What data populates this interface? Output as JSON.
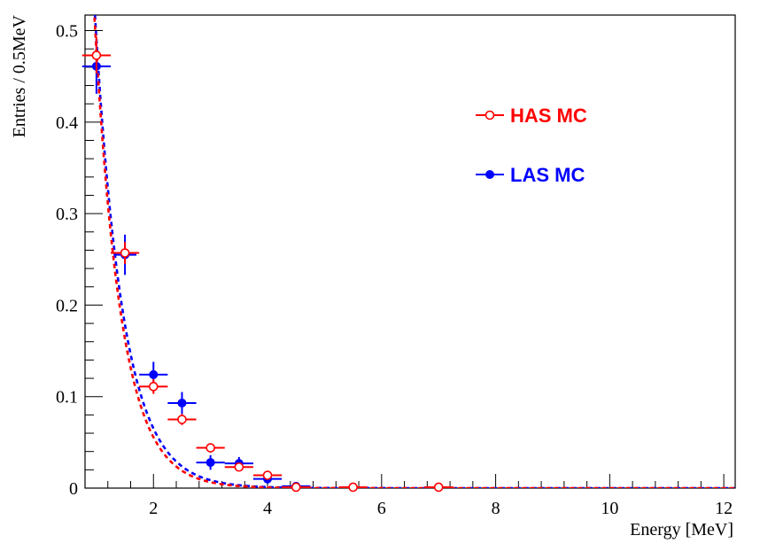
{
  "chart_data": {
    "type": "scatter",
    "xlabel": "Energy [MeV]",
    "ylabel": "Entries / 0.5MeV",
    "xlim": [
      0.8,
      12.2
    ],
    "ylim": [
      0,
      0.517
    ],
    "x_ticks": [
      2,
      4,
      6,
      8,
      10,
      12
    ],
    "x_tick_labels": [
      "2",
      "4",
      "6",
      "8",
      "10",
      "12"
    ],
    "y_ticks": [
      0,
      0.1,
      0.2,
      0.3,
      0.4,
      0.5
    ],
    "y_tick_labels": [
      "0",
      "0.1",
      "0.2",
      "0.3",
      "0.4",
      "0.5"
    ],
    "grid": false,
    "legend_position": "top-right",
    "series": [
      {
        "name": "HAS MC",
        "color": "#ff0000",
        "marker": "open-circle",
        "points": [
          {
            "x": 1.0,
            "y": 0.473,
            "xerr": 0.25,
            "yerr": 0.02
          },
          {
            "x": 1.5,
            "y": 0.257,
            "xerr": 0.25,
            "yerr": 0.012
          },
          {
            "x": 2.0,
            "y": 0.111,
            "xerr": 0.25,
            "yerr": 0.008
          },
          {
            "x": 2.5,
            "y": 0.075,
            "xerr": 0.25,
            "yerr": 0.006
          },
          {
            "x": 3.0,
            "y": 0.044,
            "xerr": 0.25,
            "yerr": 0.005
          },
          {
            "x": 3.5,
            "y": 0.023,
            "xerr": 0.25,
            "yerr": 0.004
          },
          {
            "x": 4.0,
            "y": 0.014,
            "xerr": 0.25,
            "yerr": 0.003
          },
          {
            "x": 4.5,
            "y": 0.001,
            "xerr": 0.25,
            "yerr": 0.001
          },
          {
            "x": 5.5,
            "y": 0.001,
            "xerr": 0.25,
            "yerr": 0.001
          },
          {
            "x": 7.0,
            "y": 0.001,
            "xerr": 0.25,
            "yerr": 0.001
          }
        ],
        "fit": {
          "type": "exponential",
          "amplitude": 4.1,
          "slope": 2.15
        }
      },
      {
        "name": "LAS MC",
        "color": "#0000ff",
        "marker": "filled-circle",
        "points": [
          {
            "x": 1.0,
            "y": 0.461,
            "xerr": 0.25,
            "yerr": 0.03
          },
          {
            "x": 1.5,
            "y": 0.255,
            "xerr": 0.2,
            "yerr": 0.022
          },
          {
            "x": 2.0,
            "y": 0.124,
            "xerr": 0.25,
            "yerr": 0.014
          },
          {
            "x": 2.5,
            "y": 0.093,
            "xerr": 0.25,
            "yerr": 0.012
          },
          {
            "x": 3.0,
            "y": 0.028,
            "xerr": 0.25,
            "yerr": 0.008
          },
          {
            "x": 3.5,
            "y": 0.027,
            "xerr": 0.25,
            "yerr": 0.007
          },
          {
            "x": 4.0,
            "y": 0.01,
            "xerr": 0.25,
            "yerr": 0.005
          },
          {
            "x": 4.5,
            "y": 0.002,
            "xerr": 0.25,
            "yerr": 0.003
          }
        ],
        "fit": {
          "type": "exponential",
          "amplitude": 3.7,
          "slope": 2.02
        }
      }
    ]
  }
}
